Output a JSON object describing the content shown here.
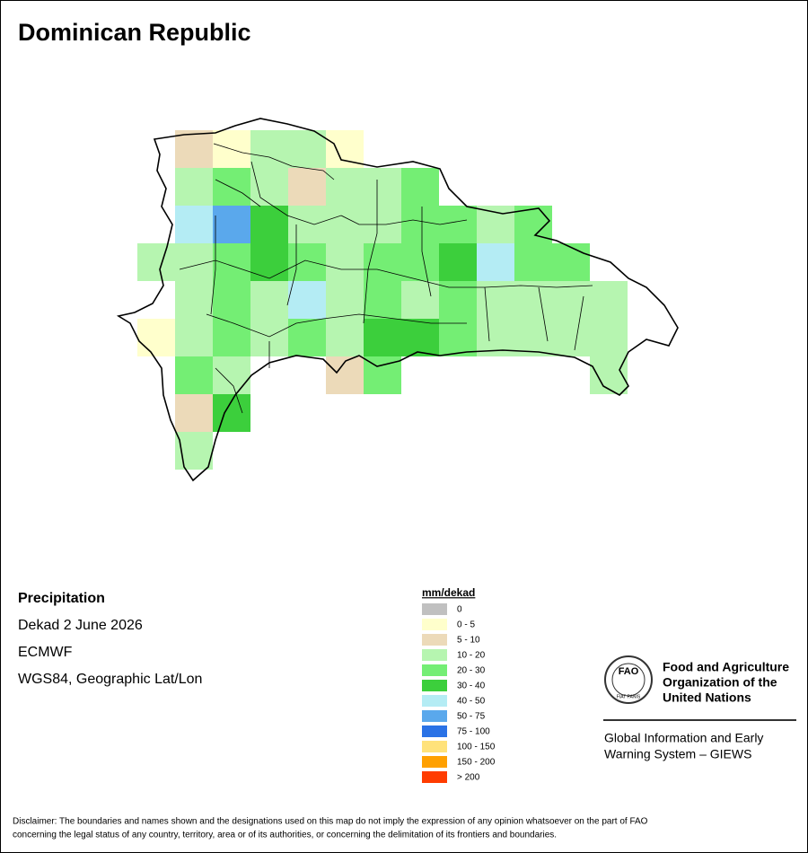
{
  "title": "Dominican Republic",
  "info": {
    "variable": "Precipitation",
    "period": "Dekad 2 June 2026",
    "source": "ECMWF",
    "projection": "WGS84, Geographic Lat/Lon"
  },
  "legend": {
    "title": "mm/dekad",
    "items": [
      {
        "label": "0",
        "color": "#c0c0c0"
      },
      {
        "label": "0 - 5",
        "color": "#ffffcc"
      },
      {
        "label": "5 - 10",
        "color": "#ecdab9"
      },
      {
        "label": "10 - 20",
        "color": "#b6f5b0"
      },
      {
        "label": "20 - 30",
        "color": "#74ee74"
      },
      {
        "label": "30 - 40",
        "color": "#3ccf3c"
      },
      {
        "label": "40 - 50",
        "color": "#b4ecf4"
      },
      {
        "label": "50 - 75",
        "color": "#5aa8ec"
      },
      {
        "label": "75 - 100",
        "color": "#2a72e6"
      },
      {
        "label": "100 - 150",
        "color": "#ffe27a"
      },
      {
        "label": "150 - 200",
        "color": "#ffa000"
      },
      {
        "label": "> 200",
        "color": "#ff3c00"
      }
    ]
  },
  "logo": {
    "acronym": "FAO",
    "motto": "FIAT PANIS",
    "org": [
      "Food and Agriculture",
      "Organization of the",
      "United Nations"
    ],
    "system": [
      "Global Information and Early",
      "Warning System – GIEWS"
    ]
  },
  "disclaimer": [
    "Disclaimer: The boundaries and names shown and the designations used on this map do not imply the expression of any opinion whatsoever on the part of FAO",
    "concerning the legal status of any country, territory, area or of its authorities, or concerning the delimitation of its frontiers and boundaries."
  ]
}
